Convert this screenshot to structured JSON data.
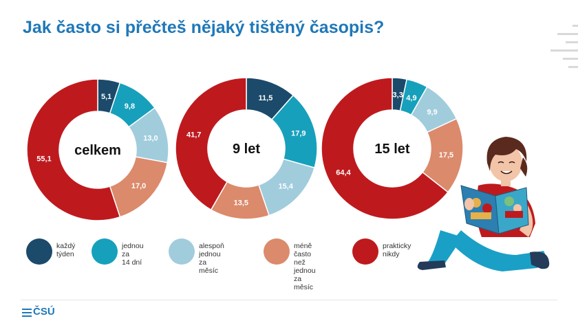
{
  "page": {
    "title": "Jak často si přečteš nějaký tištěný časopis?",
    "logo_text": "ČSÚ"
  },
  "colors": {
    "title": "#1f78b8",
    "kazdy_tyden": "#1b4a6b",
    "jednou_za_14_dni": "#17a0bc",
    "alespon_jednou_za_mesic": "#a1ccdc",
    "mene_casto": "#db8a6c",
    "prakticky_nikdy": "#be1a1e"
  },
  "chart_data": [
    {
      "type": "pie",
      "center_label": "celkem",
      "categories": [
        "každý týden",
        "jednou za 14 dní",
        "alespoň jednou za měsíc",
        "méně často než jednou za měsíc",
        "prakticky nikdy"
      ],
      "values": [
        5.1,
        9.8,
        13.0,
        17.0,
        55.1
      ],
      "labels": [
        "5,1",
        "9,8",
        "13,0",
        "17,0",
        "55,1"
      ]
    },
    {
      "type": "pie",
      "center_label": "9 let",
      "categories": [
        "každý týden",
        "jednou za 14 dní",
        "alespoň jednou za měsíc",
        "méně často než jednou za měsíc",
        "prakticky nikdy"
      ],
      "values": [
        11.5,
        17.9,
        15.4,
        13.5,
        41.7
      ],
      "labels": [
        "11,5",
        "17,9",
        "15,4",
        "13,5",
        "41,7"
      ]
    },
    {
      "type": "pie",
      "center_label": "15 let",
      "categories": [
        "každý týden",
        "jednou za 14 dní",
        "alespoň jednou za měsíc",
        "méně často než jednou za měsíc",
        "prakticky nikdy"
      ],
      "values": [
        3.3,
        4.9,
        9.9,
        17.5,
        64.4
      ],
      "labels": [
        "3,3",
        "4,9",
        "9,9",
        "17,5",
        "64,4"
      ]
    }
  ],
  "legend": [
    {
      "label": "každý\ntýden",
      "color_key": "kazdy_tyden"
    },
    {
      "label": "jednou za\n14 dní",
      "color_key": "jednou_za_14_dni"
    },
    {
      "label": "alespoň jednou\nza měsíc",
      "color_key": "alespon_jednou_za_mesic"
    },
    {
      "label": "méně často\nnež jednou\nza měsíc",
      "color_key": "mene_casto"
    },
    {
      "label": "prakticky\nnikdy",
      "color_key": "prakticky_nikdy"
    }
  ]
}
